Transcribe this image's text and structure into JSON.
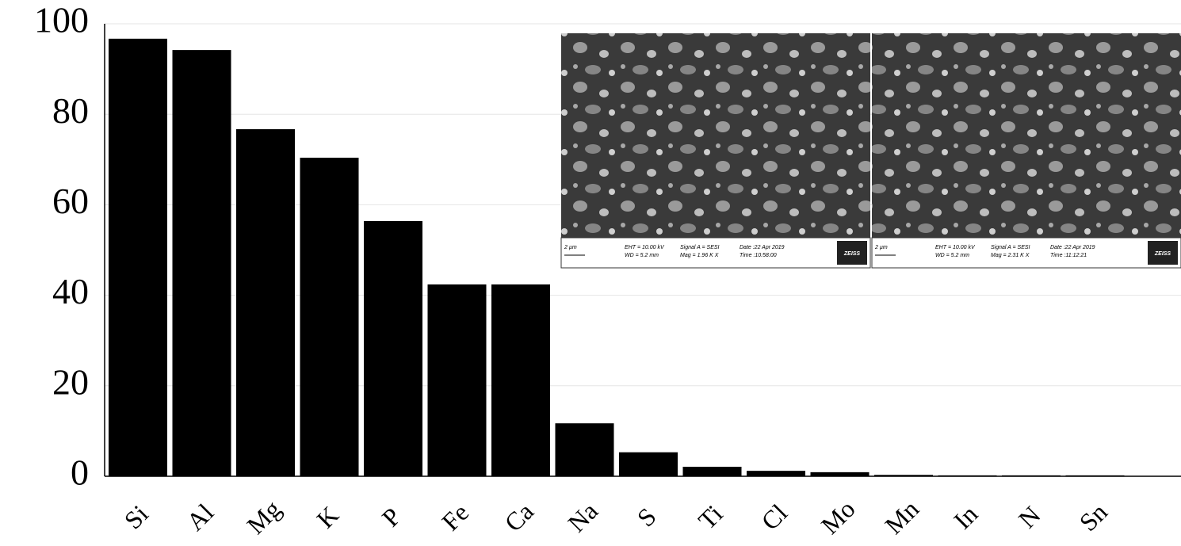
{
  "chart_data": {
    "type": "bar",
    "categories": [
      "Si",
      "Al",
      "Mg",
      "K",
      "P",
      "Fe",
      "Ca",
      "Na",
      "S",
      "Ti",
      "Cl",
      "Mo",
      "Mn",
      "In",
      "N",
      "Sn"
    ],
    "values": [
      96.7,
      94.2,
      76.7,
      70.4,
      56.4,
      42.4,
      42.4,
      11.7,
      5.3,
      2.1,
      1.2,
      0.9,
      0.3,
      0.2,
      0.2,
      0.2
    ],
    "color": "#000000",
    "ylim": [
      0,
      100
    ],
    "yticks": [
      0,
      20,
      40,
      60,
      80,
      100
    ],
    "grid": true,
    "insets": [
      {
        "scale": "2 µm",
        "eht": "EHT = 10.00 kV",
        "wd": "WD = 5.2 mm",
        "signal": "Signal A = SESI",
        "mag": "Mag = 1.96 K X",
        "date": "Date :22 Apr 2019",
        "time": "Time :10:58:00",
        "brand": "ZEISS"
      },
      {
        "scale": "2 µm",
        "eht": "EHT = 10.00 kV",
        "wd": "WD = 5.2 mm",
        "signal": "Signal A = SESI",
        "mag": "Mag = 2.31 K X",
        "date": "Date :22 Apr 2019",
        "time": "Time :11:12:21",
        "brand": "ZEISS"
      }
    ]
  }
}
